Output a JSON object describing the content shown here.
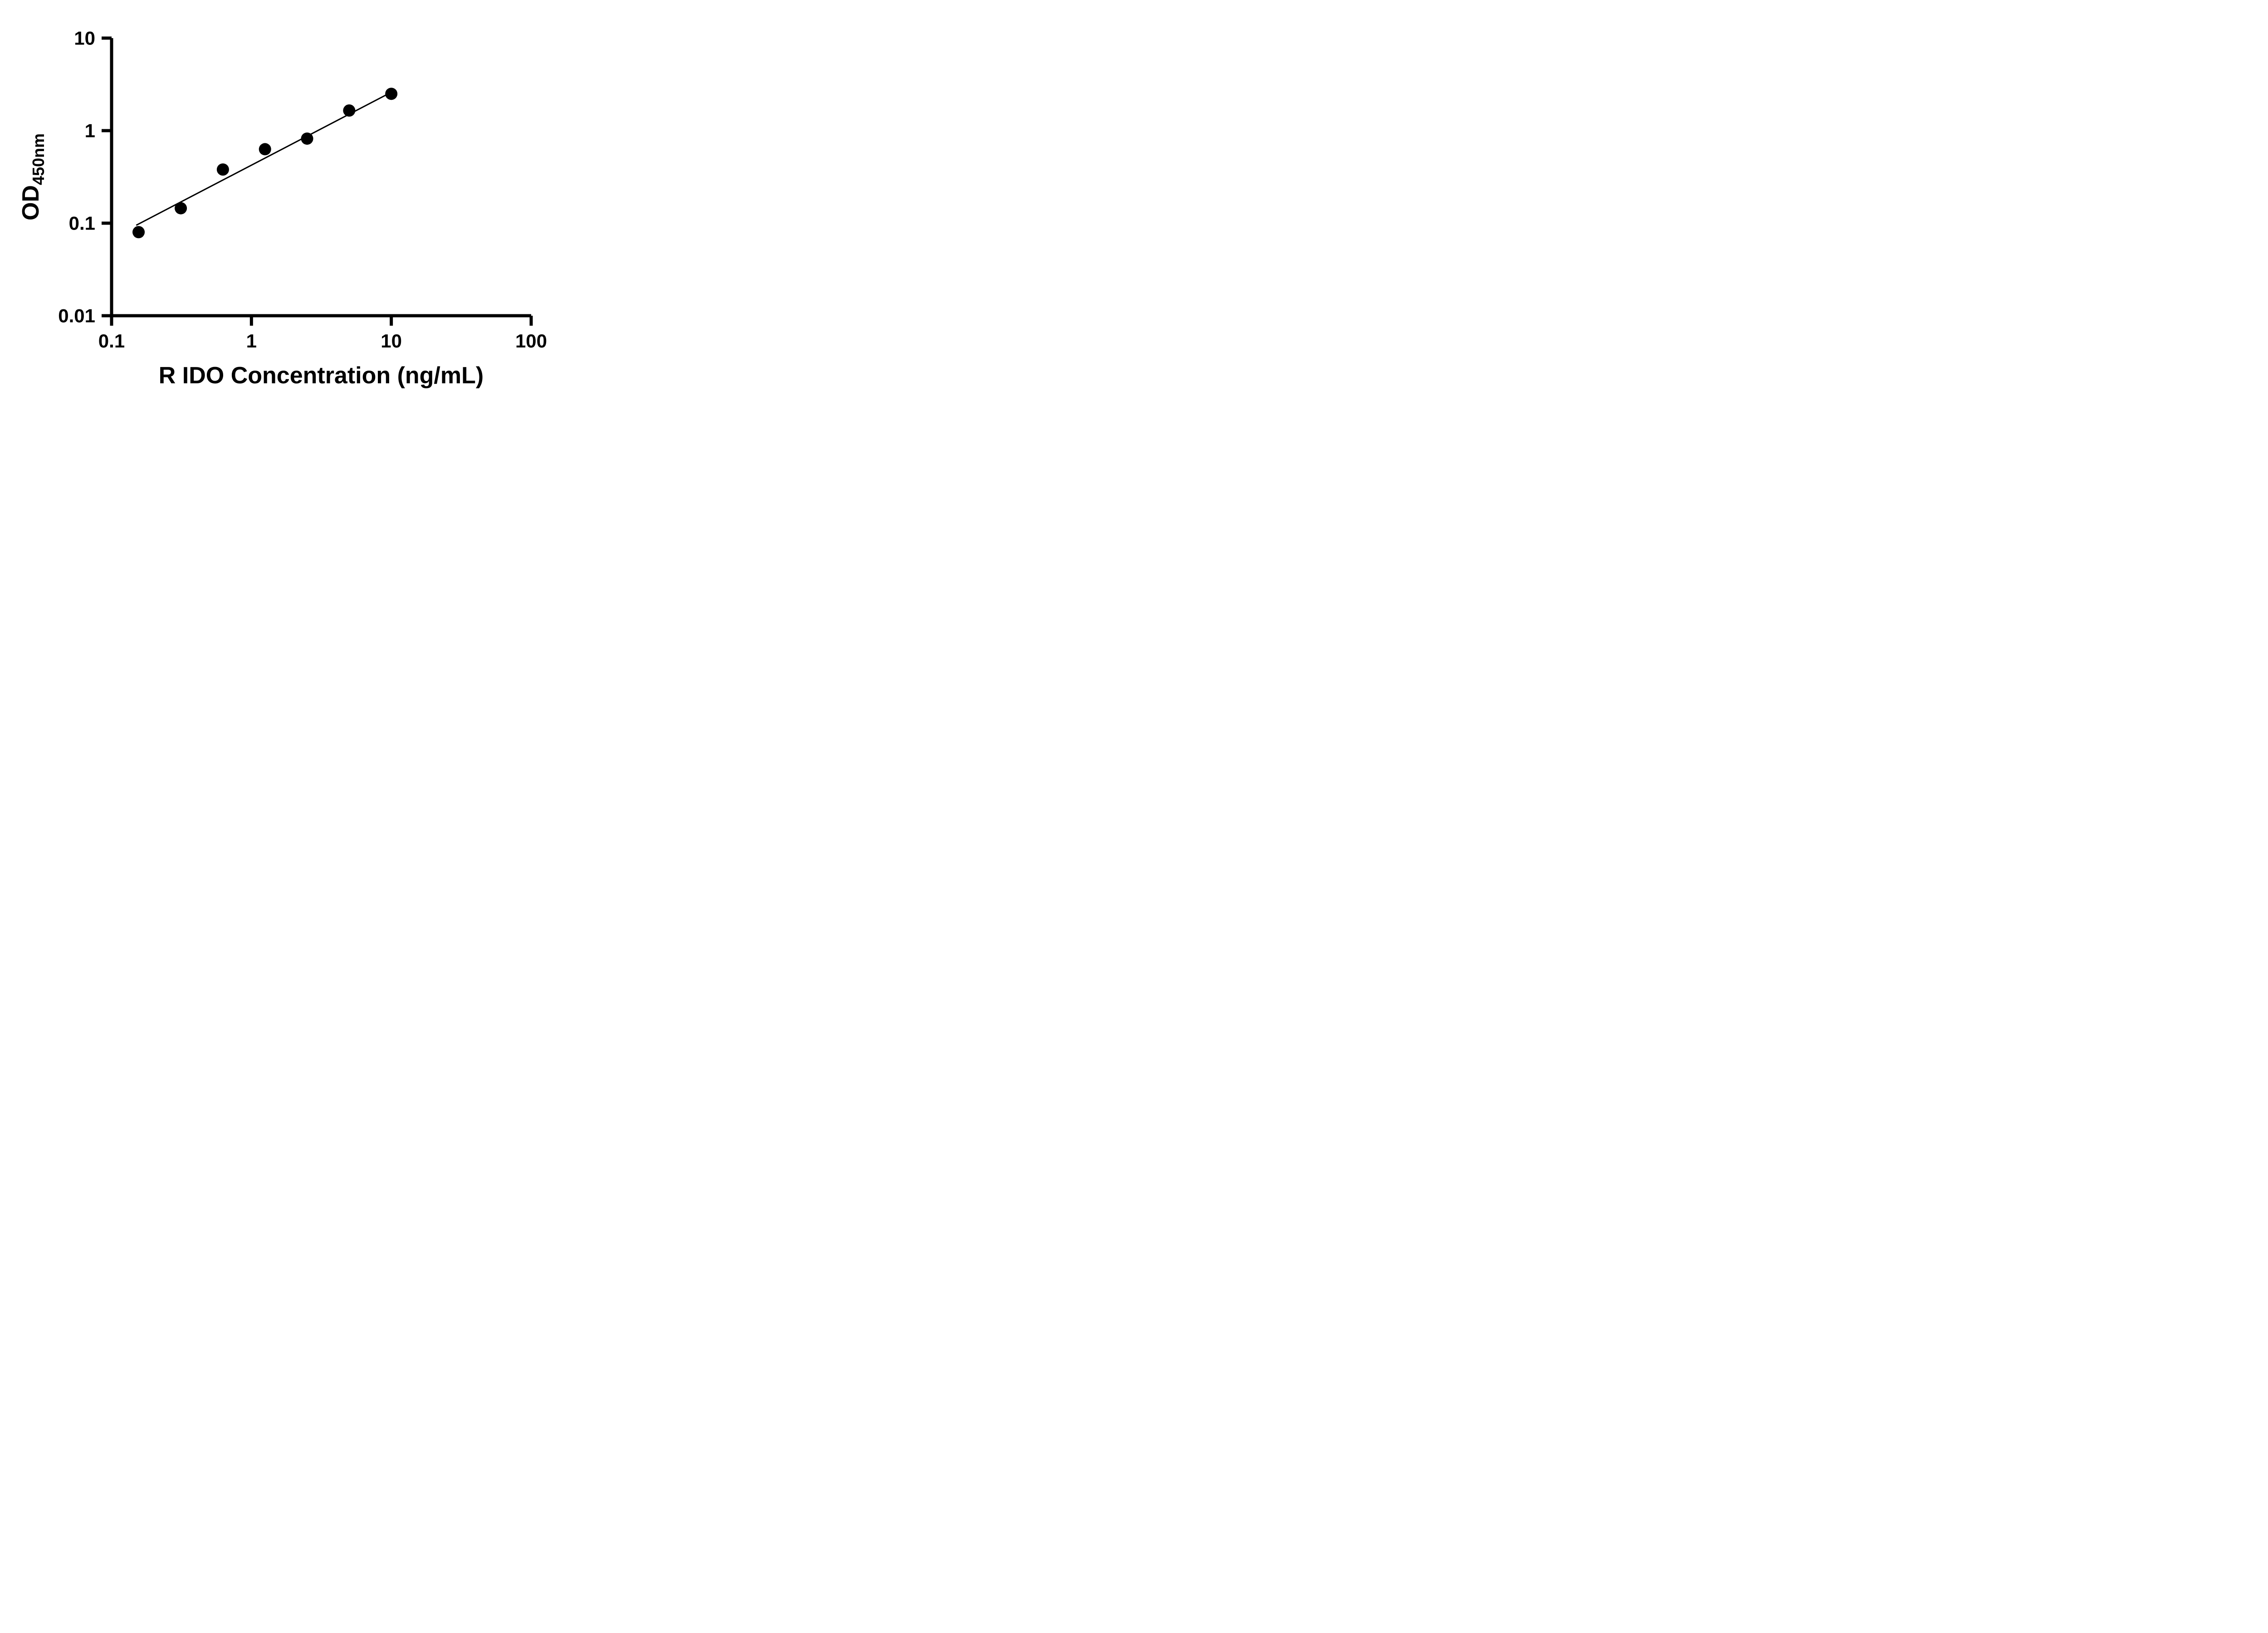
{
  "chart_data": {
    "type": "scatter",
    "title": "",
    "xlabel": "R IDO Concentration (ng/mL)",
    "ylabel": "OD",
    "ylabel_subscript": "450nm",
    "x_scale": "log",
    "y_scale": "log",
    "xlim": [
      0.1,
      100
    ],
    "ylim": [
      0.01,
      10
    ],
    "grid": "off",
    "legend": "none",
    "x_ticks": [
      {
        "value": 0.1,
        "label": "0.1"
      },
      {
        "value": 1,
        "label": "1"
      },
      {
        "value": 10,
        "label": "10"
      },
      {
        "value": 100,
        "label": "100"
      }
    ],
    "y_ticks": [
      {
        "value": 10,
        "label": "10"
      },
      {
        "value": 1,
        "label": "1"
      },
      {
        "value": 0.1,
        "label": "0.1"
      },
      {
        "value": 0.01,
        "label": "0.01"
      }
    ],
    "points": [
      {
        "x": 0.156,
        "y": 0.08
      },
      {
        "x": 0.3125,
        "y": 0.145
      },
      {
        "x": 0.625,
        "y": 0.38
      },
      {
        "x": 1.25,
        "y": 0.63
      },
      {
        "x": 2.5,
        "y": 0.82
      },
      {
        "x": 5,
        "y": 1.65
      },
      {
        "x": 10,
        "y": 2.5
      }
    ],
    "fit_line": {
      "x1": 0.15,
      "y1": 0.095,
      "x2": 10,
      "y2": 2.6
    },
    "marker_color": "#000000",
    "line_color": "#000000",
    "axis_color": "#000000",
    "background": "#ffffff"
  }
}
